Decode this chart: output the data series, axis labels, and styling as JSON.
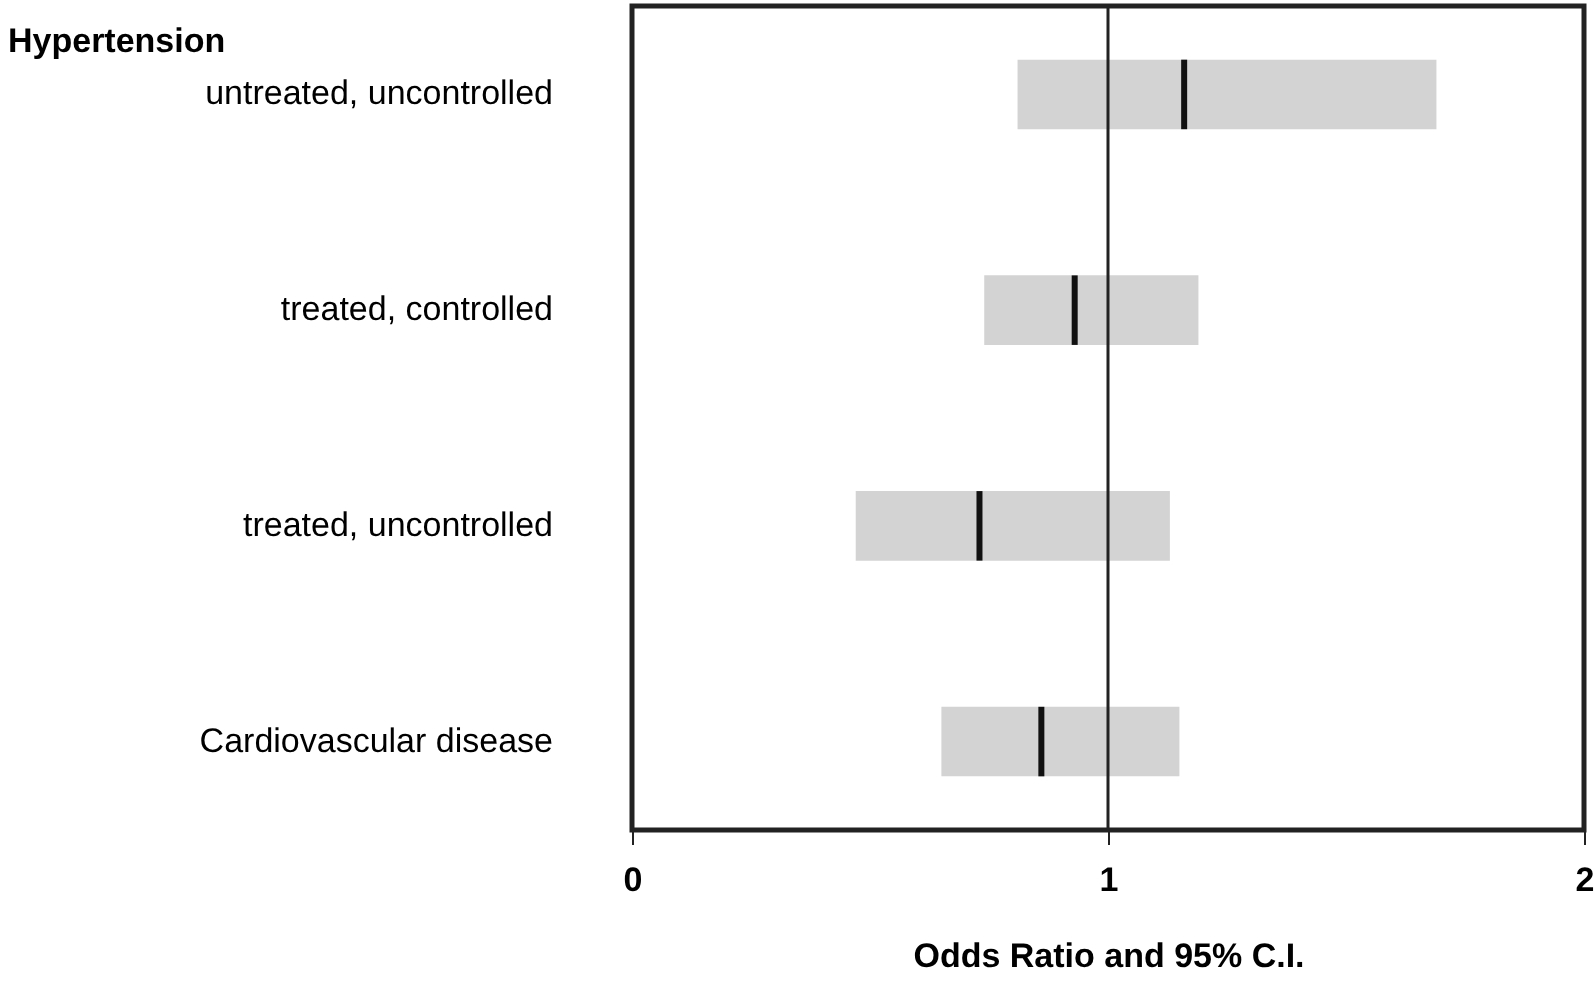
{
  "chart_data": {
    "type": "box",
    "orientation": "horizontal",
    "xlabel": "Odds Ratio and 95% C.I.",
    "annotations": [
      "Hypertension"
    ],
    "categories": [
      "untreated, uncontrolled",
      "treated, controlled",
      "treated, uncontrolled",
      "Cardiovascular disease"
    ],
    "series": [
      {
        "color": "#d3d3d3",
        "boxes": [
          {
            "low": 0.81,
            "q1": 0.81,
            "median": 1.16,
            "q3": 1.69,
            "high": 1.69
          },
          {
            "low": 0.74,
            "q1": 0.74,
            "median": 0.93,
            "q3": 1.19,
            "high": 1.19
          },
          {
            "low": 0.47,
            "q1": 0.47,
            "median": 0.73,
            "q3": 1.13,
            "high": 1.13
          },
          {
            "low": 0.65,
            "q1": 0.65,
            "median": 0.86,
            "q3": 1.15,
            "high": 1.15
          }
        ]
      }
    ],
    "xlim": [
      0,
      2
    ],
    "xticks": [
      0,
      1,
      2
    ],
    "grid": false,
    "ref_lines": [
      {
        "axis": "x",
        "value": 1,
        "color": "#222222"
      }
    ]
  }
}
